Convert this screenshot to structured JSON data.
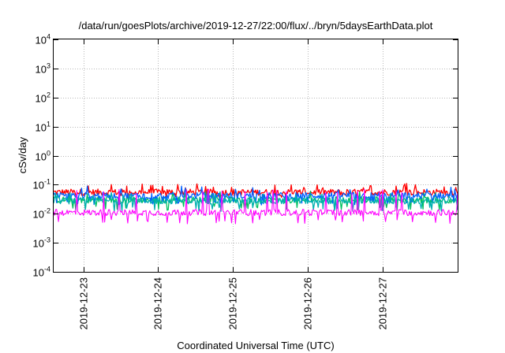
{
  "chart_data": {
    "type": "line",
    "title": "/data/run/goesPlots/archive/2019-12-27/22:00/flux/../bryn/5daysEarthData.plot",
    "xlabel": "Coordinated Universal Time (UTC)",
    "ylabel": "cSv/day",
    "yscale": "log",
    "ylim": [
      0.0001,
      10000
    ],
    "xlim": [
      "2019-12-22T14:30",
      "2019-12-28T00:00"
    ],
    "grid": true,
    "y_ticks": [
      {
        "base": "10",
        "exp": "-4",
        "value": 0.0001
      },
      {
        "base": "10",
        "exp": "-3",
        "value": 0.001
      },
      {
        "base": "10",
        "exp": "-2",
        "value": 0.01
      },
      {
        "base": "10",
        "exp": "-1",
        "value": 0.1
      },
      {
        "base": "10",
        "exp": "0",
        "value": 1
      },
      {
        "base": "10",
        "exp": "1",
        "value": 10
      },
      {
        "base": "10",
        "exp": "2",
        "value": 100
      },
      {
        "base": "10",
        "exp": "3",
        "value": 1000
      },
      {
        "base": "10",
        "exp": "4",
        "value": 10000
      }
    ],
    "x_ticks": [
      {
        "label": "2019-12-23",
        "value": "2019-12-23T00:00"
      },
      {
        "label": "2019-12-24",
        "value": "2019-12-24T00:00"
      },
      {
        "label": "2019-12-25",
        "value": "2019-12-25T00:00"
      },
      {
        "label": "2019-12-26",
        "value": "2019-12-26T00:00"
      },
      {
        "label": "2019-12-27",
        "value": "2019-12-27T00:00"
      }
    ],
    "series": [
      {
        "color": "#ff0000",
        "y_typical": 0.055,
        "y_min": 0.035,
        "y_max": 0.11
      },
      {
        "color": "#00c060",
        "y_typical": 0.03,
        "y_min": 0.013,
        "y_max": 0.06
      },
      {
        "color": "#0060ff",
        "y_typical": 0.042,
        "y_min": 0.02,
        "y_max": 0.09
      },
      {
        "color": "#00b0b0",
        "y_typical": 0.028,
        "y_min": 0.012,
        "y_max": 0.055
      },
      {
        "color": "#ff00ff",
        "y_typical": 0.011,
        "y_min": 0.0045,
        "y_max": 0.07
      }
    ]
  }
}
